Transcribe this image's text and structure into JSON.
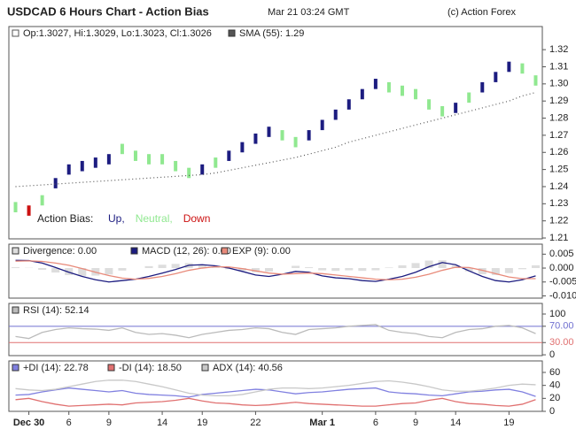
{
  "header": {
    "title": "USDCAD 6 Hours Chart - Action Bias",
    "time": "Mar 21 03:24 GMT",
    "credit": "(c) Action Forex"
  },
  "chart_data": [
    {
      "type": "range-bar",
      "info": "Op:1.3027, Hi:1.3029, Lo:1.3023, Cl:1.3026",
      "categories": [
        null,
        "Dec 30",
        null,
        null,
        "6",
        null,
        null,
        "9",
        null,
        null,
        null,
        "14",
        null,
        null,
        "19",
        null,
        null,
        null,
        "22",
        null,
        null,
        null,
        null,
        "Mar 1",
        null,
        null,
        null,
        "6",
        null,
        null,
        "9",
        null,
        null,
        "14",
        null,
        null,
        null,
        "19",
        null,
        null
      ],
      "low": [
        1.225,
        1.223,
        1.229,
        1.239,
        1.247,
        1.249,
        1.251,
        1.253,
        1.259,
        1.255,
        1.253,
        1.253,
        1.249,
        1.245,
        1.247,
        1.251,
        1.255,
        1.26,
        1.265,
        1.269,
        1.267,
        1.263,
        1.267,
        1.273,
        1.279,
        1.285,
        1.291,
        1.297,
        1.295,
        1.293,
        1.291,
        1.285,
        1.281,
        1.283,
        1.289,
        1.295,
        1.301,
        1.307,
        1.306,
        1.299
      ],
      "high": [
        1.231,
        1.229,
        1.235,
        1.245,
        1.253,
        1.255,
        1.257,
        1.259,
        1.265,
        1.261,
        1.259,
        1.259,
        1.255,
        1.251,
        1.253,
        1.257,
        1.261,
        1.266,
        1.271,
        1.275,
        1.273,
        1.269,
        1.273,
        1.279,
        1.285,
        1.291,
        1.297,
        1.303,
        1.301,
        1.299,
        1.297,
        1.291,
        1.287,
        1.289,
        1.295,
        1.301,
        1.307,
        1.313,
        1.312,
        1.305
      ],
      "colors": [
        "#90e890",
        "#cc1111",
        "#90e890",
        "#1c1c80",
        "#1c1c80",
        "#1c1c80",
        "#1c1c80",
        "#1c1c80",
        "#90e890",
        "#90e890",
        "#90e890",
        "#90e890",
        "#90e890",
        "#90e890",
        "#1c1c80",
        "#90e890",
        "#1c1c80",
        "#1c1c80",
        "#1c1c80",
        "#1c1c80",
        "#90e890",
        "#90e890",
        "#1c1c80",
        "#1c1c80",
        "#1c1c80",
        "#1c1c80",
        "#1c1c80",
        "#1c1c80",
        "#90e890",
        "#90e890",
        "#90e890",
        "#90e890",
        "#90e890",
        "#1c1c80",
        "#90e890",
        "#1c1c80",
        "#1c1c80",
        "#1c1c80",
        "#90e890",
        "#90e890"
      ],
      "bias_label": "Action Bias:",
      "bias_legend": [
        {
          "label": "Up,",
          "color": "#1c1c80"
        },
        {
          "label": "Neutral,",
          "color": "#90e890"
        },
        {
          "label": "Down",
          "color": "#cc1111"
        }
      ],
      "series": [
        {
          "name": "SMA (55): 1.29",
          "color": "#555555",
          "type": "line",
          "values": [
            1.24,
            1.2405,
            1.241,
            1.2415,
            1.242,
            1.2425,
            1.243,
            1.2435,
            1.244,
            1.2445,
            1.245,
            1.2455,
            1.246,
            1.2465,
            1.247,
            1.248,
            1.2495,
            1.251,
            1.2525,
            1.254,
            1.2555,
            1.257,
            1.259,
            1.261,
            1.263,
            1.266,
            1.268,
            1.27,
            1.272,
            1.274,
            1.276,
            1.278,
            1.28,
            1.282,
            1.284,
            1.286,
            1.288,
            1.29,
            1.293,
            1.295
          ]
        }
      ],
      "ylim": [
        1.2095,
        1.3335
      ],
      "yticks": [
        1.21,
        1.22,
        1.23,
        1.24,
        1.25,
        1.26,
        1.27,
        1.28,
        1.29,
        {
          "value": 1.3,
          "label": "1.30"
        },
        1.31,
        1.32
      ]
    },
    {
      "type": "indicator",
      "series": [
        {
          "name": "Divergence: 0.00",
          "color": "#dddddd",
          "type": "bar",
          "values": [
            0.0003,
            0.0001,
            -0.0006,
            -0.0016,
            -0.0025,
            -0.0028,
            -0.0027,
            -0.0023,
            -0.0009,
            0,
            0.0007,
            0.0012,
            0.0015,
            0.0018,
            0.0012,
            0.0003,
            -0.0004,
            -0.001,
            -0.0015,
            -0.0012,
            0,
            0.0008,
            0.0003,
            -0.0008,
            -0.001,
            -0.0008,
            -0.001,
            -0.0008,
            0.0002,
            0.001,
            0.0018,
            0.0027,
            0.0028,
            0.0009,
            -0.0012,
            -0.0022,
            -0.0025,
            -0.0018,
            -0.0004,
            0.001
          ]
        },
        {
          "name": "MACD (12, 26): 0.00",
          "color": "#1c1c80",
          "type": "line",
          "values": [
            0.0028,
            0.0027,
            0.0018,
            0.0002,
            -0.0015,
            -0.003,
            -0.0042,
            -0.005,
            -0.0045,
            -0.004,
            -0.003,
            -0.0018,
            -0.0005,
            0.001,
            0.0012,
            0.0008,
            0,
            -0.0012,
            -0.0025,
            -0.003,
            -0.0022,
            -0.0012,
            -0.0015,
            -0.0028,
            -0.0035,
            -0.0038,
            -0.0045,
            -0.0048,
            -0.004,
            -0.003,
            -0.0015,
            0.0005,
            0.002,
            0.0012,
            -0.001,
            -0.003,
            -0.0045,
            -0.005,
            -0.0042,
            -0.0028
          ]
        },
        {
          "name": "EXP (9): 0.00",
          "color": "#e88a7a",
          "type": "line",
          "values": [
            0.0025,
            0.0026,
            0.0024,
            0.0018,
            0.001,
            -0.0002,
            -0.0015,
            -0.0027,
            -0.0036,
            -0.004,
            -0.0037,
            -0.003,
            -0.002,
            -0.0008,
            0,
            0.0005,
            0.0004,
            -0.0002,
            -0.001,
            -0.0018,
            -0.0022,
            -0.002,
            -0.0018,
            -0.002,
            -0.0025,
            -0.003,
            -0.0035,
            -0.004,
            -0.0042,
            -0.004,
            -0.0033,
            -0.0022,
            -0.0008,
            0.0003,
            0.0002,
            -0.0008,
            -0.002,
            -0.0032,
            -0.0038,
            -0.0038
          ]
        }
      ],
      "ylim": [
        -0.0108,
        0.0086
      ],
      "yticks": [
        0.005,
        {
          "value": 0,
          "label": "0.000"
        },
        -0.005,
        {
          "value": -0.01,
          "label": "-0.010"
        }
      ]
    },
    {
      "type": "indicator",
      "series": [
        {
          "name": "RSI (14): 52.14",
          "color": "#bbbbbb",
          "type": "line",
          "values": [
            45,
            40,
            55,
            62,
            66,
            64,
            63,
            60,
            66,
            55,
            50,
            52,
            48,
            42,
            50,
            55,
            60,
            62,
            66,
            64,
            55,
            50,
            62,
            64,
            66,
            70,
            72,
            74,
            60,
            55,
            52,
            45,
            42,
            55,
            62,
            64,
            70,
            72,
            66,
            52
          ]
        }
      ],
      "levels": [
        {
          "value": 70,
          "color": "#7070d0"
        },
        {
          "value": 30,
          "color": "#e07070"
        }
      ],
      "ylim": [
        -2,
        126
      ],
      "yticks": [
        100,
        {
          "value": 70,
          "label": "70.00"
        },
        {
          "value": 30,
          "label": "30.00"
        },
        0
      ]
    },
    {
      "type": "indicator",
      "series": [
        {
          "name": "+DI (14): 22.78",
          "color": "#8080e0",
          "type": "line",
          "values": [
            25,
            26,
            30,
            33,
            36,
            34,
            32,
            30,
            32,
            28,
            26,
            25,
            24,
            22,
            26,
            28,
            30,
            32,
            34,
            33,
            30,
            27,
            29,
            30,
            32,
            34,
            35,
            36,
            30,
            28,
            27,
            25,
            24,
            27,
            30,
            31,
            33,
            34,
            30,
            23
          ]
        },
        {
          "name": "-DI (14): 18.50",
          "color": "#e07070",
          "type": "line",
          "values": [
            18,
            20,
            15,
            11,
            8,
            9,
            10,
            11,
            10,
            13,
            14,
            15,
            17,
            20,
            16,
            13,
            12,
            10,
            9,
            10,
            12,
            14,
            12,
            11,
            10,
            9,
            8,
            8,
            10,
            12,
            13,
            17,
            20,
            15,
            12,
            11,
            9,
            8,
            11,
            18
          ]
        },
        {
          "name": "ADX (14): 40.56",
          "color": "#c8c8c8",
          "type": "line",
          "values": [
            35,
            33,
            32,
            34,
            38,
            42,
            46,
            48,
            48,
            46,
            42,
            38,
            33,
            28,
            25,
            24,
            24,
            26,
            30,
            34,
            36,
            36,
            35,
            36,
            38,
            40,
            43,
            46,
            47,
            45,
            42,
            38,
            33,
            31,
            31,
            33,
            36,
            40,
            42,
            41
          ]
        }
      ],
      "ylim": [
        0,
        77.7
      ],
      "yticks": [
        60,
        40,
        20,
        0
      ]
    }
  ]
}
